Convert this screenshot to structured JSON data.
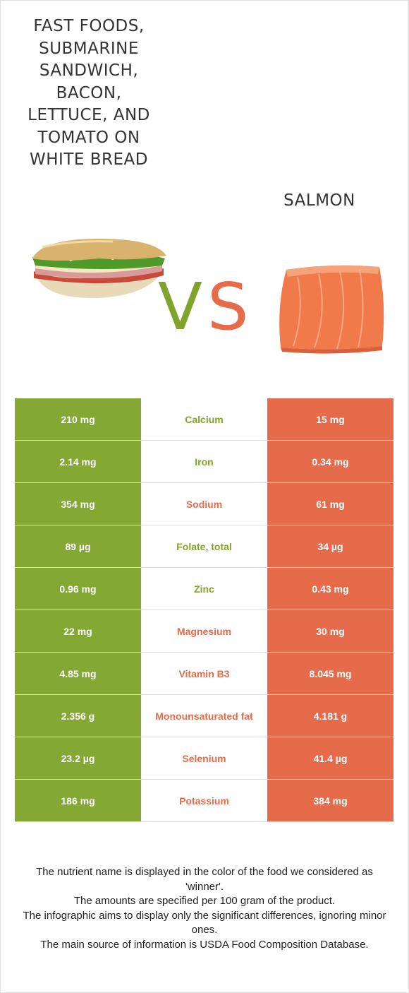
{
  "left_food": {
    "name": "FAST FOODS, SUBMARINE SANDWICH, BACON, LETTUCE, AND TOMATO ON WHITE BREAD"
  },
  "right_food": {
    "name": "SALMON"
  },
  "vs_text": "VS",
  "colors": {
    "left": "#84a833",
    "right": "#e66b4b",
    "vs_v": "#7ea42c",
    "vs_s": "#e66b4b"
  },
  "icons": {
    "left_image": "sandwich-image",
    "right_image": "salmon-fillet-image"
  },
  "rows": [
    {
      "left": "210 mg",
      "nutrient": "Calcium",
      "right": "15 mg",
      "winner": "left"
    },
    {
      "left": "2.14 mg",
      "nutrient": "Iron",
      "right": "0.34 mg",
      "winner": "left"
    },
    {
      "left": "354 mg",
      "nutrient": "Sodium",
      "right": "61 mg",
      "winner": "right"
    },
    {
      "left": "89 µg",
      "nutrient": "Folate, total",
      "right": "34 µg",
      "winner": "left"
    },
    {
      "left": "0.96 mg",
      "nutrient": "Zinc",
      "right": "0.43 mg",
      "winner": "left"
    },
    {
      "left": "22 mg",
      "nutrient": "Magnesium",
      "right": "30 mg",
      "winner": "right"
    },
    {
      "left": "4.85 mg",
      "nutrient": "Vitamin B3",
      "right": "8.045 mg",
      "winner": "right"
    },
    {
      "left": "2.356 g",
      "nutrient": "Monounsaturated fat",
      "right": "4.181 g",
      "winner": "right"
    },
    {
      "left": "23.2 µg",
      "nutrient": "Selenium",
      "right": "41.4 µg",
      "winner": "right"
    },
    {
      "left": "186 mg",
      "nutrient": "Potassium",
      "right": "384 mg",
      "winner": "right"
    }
  ],
  "footer": [
    "The nutrient name is displayed in the color of the food we considered as 'winner'.",
    "The amounts are specified per 100 gram of the product.",
    "The infographic aims to display only the significant differences, ignoring minor ones.",
    "The main source of information is USDA Food Composition Database."
  ]
}
